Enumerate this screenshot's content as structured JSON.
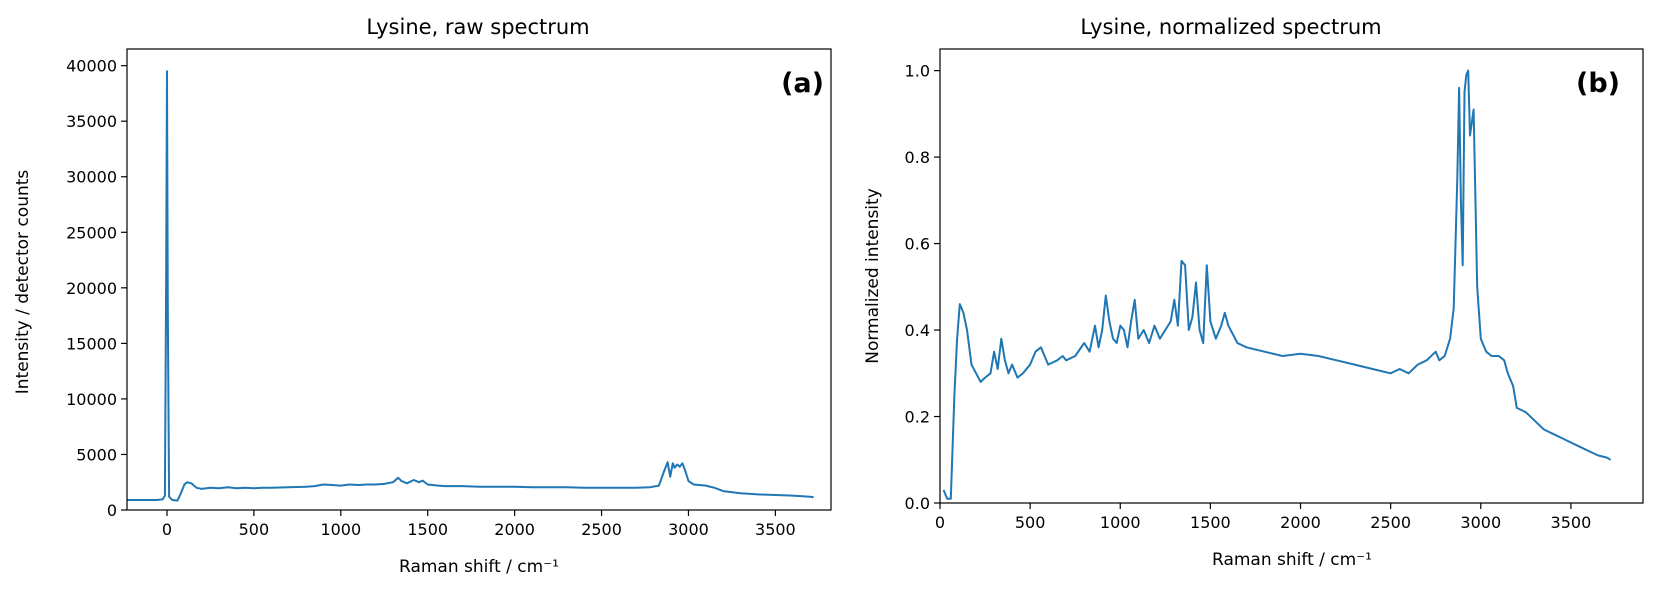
{
  "chart_data": [
    {
      "type": "line",
      "title": "Lysine, raw spectrum",
      "panel_label": "(a)",
      "xlabel": "Raman shift / cm⁻¹",
      "ylabel": "Intensity / detector counts",
      "xlim": [
        -230,
        3820
      ],
      "ylim": [
        0,
        41500
      ],
      "xticks": [
        0,
        500,
        1000,
        1500,
        2000,
        2500,
        3000,
        3500
      ],
      "yticks": [
        0,
        5000,
        10000,
        15000,
        20000,
        25000,
        30000,
        35000,
        40000
      ],
      "grid": false,
      "color": "#1f77b4",
      "series": [
        {
          "x": [
            -230,
            -60,
            -25,
            -12,
            -5,
            0,
            5,
            12,
            30,
            60,
            80,
            100,
            115,
            140,
            170,
            200,
            250,
            300,
            350,
            400,
            450,
            500,
            550,
            600,
            700,
            800,
            850,
            900,
            950,
            1000,
            1050,
            1100,
            1150,
            1200,
            1250,
            1300,
            1330,
            1350,
            1380,
            1420,
            1450,
            1470,
            1500,
            1560,
            1600,
            1700,
            1800,
            1900,
            2000,
            2100,
            2200,
            2300,
            2400,
            2500,
            2600,
            2700,
            2780,
            2830,
            2860,
            2880,
            2895,
            2910,
            2920,
            2935,
            2950,
            2965,
            2980,
            3000,
            3030,
            3100,
            3150,
            3200,
            3300,
            3400,
            3500,
            3600,
            3700,
            3720
          ],
          "values": [
            900,
            900,
            950,
            1300,
            20000,
            39500,
            18000,
            1200,
            900,
            850,
            1500,
            2300,
            2500,
            2400,
            2000,
            1900,
            2000,
            1950,
            2050,
            1950,
            2000,
            1950,
            2000,
            2000,
            2050,
            2100,
            2150,
            2300,
            2250,
            2200,
            2300,
            2250,
            2300,
            2300,
            2350,
            2500,
            2900,
            2600,
            2400,
            2700,
            2500,
            2650,
            2300,
            2200,
            2150,
            2150,
            2100,
            2100,
            2100,
            2050,
            2050,
            2050,
            2000,
            2000,
            2000,
            2000,
            2050,
            2200,
            3500,
            4300,
            3000,
            4200,
            3800,
            4100,
            3900,
            4200,
            3600,
            2600,
            2300,
            2200,
            2000,
            1700,
            1500,
            1400,
            1350,
            1300,
            1200,
            1150
          ]
        }
      ]
    },
    {
      "type": "line",
      "title": "Lysine, normalized spectrum",
      "panel_label": "(b)",
      "xlabel": "Raman shift / cm⁻¹",
      "ylabel": "Normalized intensity",
      "xlim": [
        0,
        3900
      ],
      "ylim": [
        0,
        1.05
      ],
      "xticks": [
        0,
        500,
        1000,
        1500,
        2000,
        2500,
        3000,
        3500
      ],
      "yticks": [
        0.0,
        0.2,
        0.4,
        0.6,
        0.8,
        1.0
      ],
      "grid": false,
      "color": "#1f77b4",
      "series": [
        {
          "x": [
            20,
            40,
            60,
            80,
            95,
            110,
            130,
            150,
            175,
            200,
            225,
            250,
            280,
            300,
            320,
            340,
            360,
            380,
            400,
            430,
            460,
            500,
            530,
            560,
            600,
            650,
            680,
            700,
            750,
            800,
            830,
            860,
            880,
            900,
            920,
            940,
            960,
            980,
            1000,
            1020,
            1040,
            1060,
            1080,
            1100,
            1130,
            1160,
            1190,
            1220,
            1250,
            1280,
            1300,
            1320,
            1340,
            1360,
            1380,
            1400,
            1420,
            1440,
            1460,
            1480,
            1500,
            1530,
            1560,
            1580,
            1600,
            1650,
            1700,
            1800,
            1900,
            2000,
            2100,
            2200,
            2300,
            2400,
            2500,
            2550,
            2600,
            2650,
            2700,
            2750,
            2770,
            2800,
            2830,
            2850,
            2870,
            2880,
            2890,
            2900,
            2910,
            2920,
            2930,
            2940,
            2950,
            2960,
            2980,
            3000,
            3030,
            3060,
            3100,
            3130,
            3150,
            3180,
            3200,
            3250,
            3300,
            3350,
            3400,
            3450,
            3500,
            3550,
            3600,
            3650,
            3700,
            3720
          ],
          "values": [
            0.03,
            0.01,
            0.01,
            0.25,
            0.38,
            0.46,
            0.44,
            0.4,
            0.32,
            0.3,
            0.28,
            0.29,
            0.3,
            0.35,
            0.31,
            0.38,
            0.33,
            0.3,
            0.32,
            0.29,
            0.3,
            0.32,
            0.35,
            0.36,
            0.32,
            0.33,
            0.34,
            0.33,
            0.34,
            0.37,
            0.35,
            0.41,
            0.36,
            0.4,
            0.48,
            0.42,
            0.38,
            0.37,
            0.41,
            0.4,
            0.36,
            0.42,
            0.47,
            0.38,
            0.4,
            0.37,
            0.41,
            0.38,
            0.4,
            0.42,
            0.47,
            0.41,
            0.56,
            0.55,
            0.4,
            0.43,
            0.51,
            0.4,
            0.37,
            0.55,
            0.42,
            0.38,
            0.41,
            0.44,
            0.41,
            0.37,
            0.36,
            0.35,
            0.34,
            0.345,
            0.34,
            0.33,
            0.32,
            0.31,
            0.3,
            0.31,
            0.3,
            0.32,
            0.33,
            0.35,
            0.33,
            0.34,
            0.38,
            0.45,
            0.75,
            0.96,
            0.7,
            0.55,
            0.95,
            0.99,
            1.0,
            0.85,
            0.88,
            0.91,
            0.5,
            0.38,
            0.35,
            0.34,
            0.34,
            0.33,
            0.3,
            0.27,
            0.22,
            0.21,
            0.19,
            0.17,
            0.16,
            0.15,
            0.14,
            0.13,
            0.12,
            0.11,
            0.105,
            0.1
          ]
        }
      ]
    }
  ]
}
